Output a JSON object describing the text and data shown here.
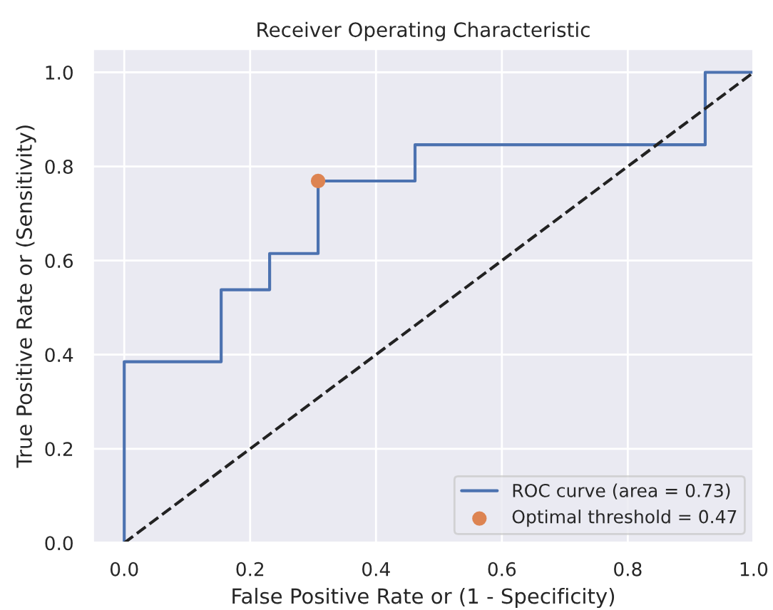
{
  "chart_data": {
    "type": "line",
    "title": "Receiver Operating Characteristic",
    "xlabel": "False Positive Rate or (1 - Specificity)",
    "ylabel": "True Positive Rate or (Sensitivity)",
    "series": [
      {
        "name": "ROC curve (area = 0.73)",
        "color": "#4c72b0",
        "x": [
          0,
          0,
          0.154,
          0.154,
          0.231,
          0.231,
          0.308,
          0.308,
          0.462,
          0.462,
          0.923,
          0.923,
          1
        ],
        "values": [
          0,
          0.385,
          0.385,
          0.538,
          0.538,
          0.615,
          0.615,
          0.769,
          0.769,
          0.846,
          0.846,
          1,
          1
        ],
        "line_style": "solid",
        "marker": "none"
      },
      {
        "name": "Optimal threshold = 0.47",
        "type": "scatter",
        "color": "#dd8452",
        "x": [
          0.308
        ],
        "values": [
          0.769
        ],
        "marker": "circle"
      },
      {
        "color": "#222222",
        "x": [
          0,
          1
        ],
        "values": [
          0,
          1
        ],
        "line_style": "dashed",
        "marker": "none"
      }
    ],
    "xlim": [
      -0.05,
      1.0
    ],
    "ylim": [
      0,
      1.05
    ],
    "xticks": [
      {
        "value": 0,
        "label": "0.0"
      },
      0.2,
      0.4,
      0.6,
      0.8,
      {
        "value": 1,
        "label": "1.0"
      }
    ],
    "yticks": [
      {
        "value": 0,
        "label": "0.0"
      },
      0.2,
      0.4,
      0.6,
      0.8,
      {
        "value": 1,
        "label": "1.0"
      }
    ],
    "grid": true,
    "legend": "bottom right"
  }
}
